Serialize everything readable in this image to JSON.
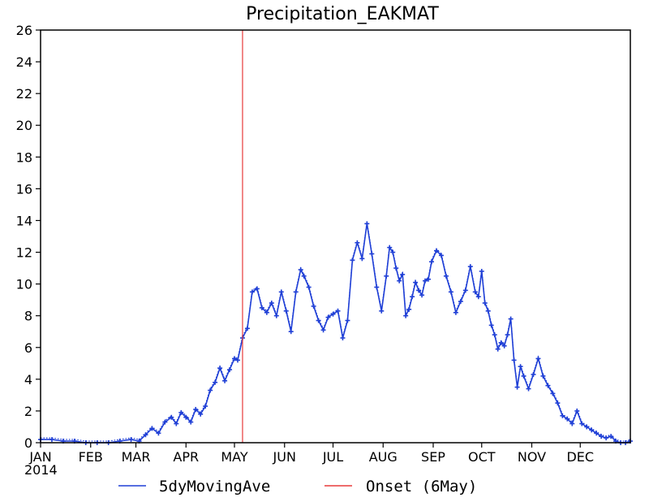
{
  "chart_data": {
    "type": "line",
    "title": "Precipitation_EAKMAT",
    "xlabel": "",
    "ylabel": "",
    "year_label": "2014",
    "x_tick_labels": [
      "JAN",
      "FEB",
      "MAR",
      "APR",
      "MAY",
      "JUN",
      "JUL",
      "AUG",
      "SEP",
      "OCT",
      "NOV",
      "DEC"
    ],
    "x_tick_days": [
      1,
      32,
      60,
      91,
      121,
      152,
      182,
      213,
      244,
      274,
      305,
      335
    ],
    "xlim": [
      1,
      366
    ],
    "ylim": [
      0,
      26
    ],
    "y_ticks": [
      0,
      2,
      4,
      6,
      8,
      10,
      12,
      14,
      16,
      18,
      20,
      22,
      24,
      26
    ],
    "grid": false,
    "legend_position": "bottom",
    "colors": {
      "series": "#1f3fd6",
      "onset": "#e83a3a",
      "axis": "#000000"
    },
    "series": [
      {
        "name": "5dyMovingAve",
        "x": [
          1,
          8,
          15,
          22,
          29,
          36,
          43,
          50,
          57,
          62,
          66,
          70,
          74,
          78,
          82,
          85,
          88,
          91,
          94,
          97,
          100,
          103,
          106,
          109,
          112,
          115,
          118,
          121,
          123,
          126,
          129,
          132,
          135,
          138,
          141,
          144,
          147,
          150,
          153,
          156,
          159,
          162,
          164,
          167,
          170,
          173,
          176,
          179,
          182,
          185,
          188,
          191,
          194,
          197,
          200,
          203,
          206,
          209,
          212,
          215,
          217,
          219,
          221,
          223,
          225,
          227,
          229,
          231,
          233,
          235,
          237,
          239,
          241,
          243,
          246,
          249,
          252,
          255,
          258,
          261,
          264,
          267,
          270,
          272,
          274,
          276,
          278,
          280,
          282,
          284,
          286,
          288,
          290,
          292,
          294,
          296,
          298,
          300,
          303,
          306,
          309,
          312,
          315,
          318,
          321,
          324,
          327,
          330,
          333,
          336,
          339,
          342,
          345,
          348,
          351,
          354,
          357,
          360,
          363,
          366
        ],
        "values": [
          0.2,
          0.2,
          0.1,
          0.1,
          0.0,
          0.0,
          0.0,
          0.1,
          0.2,
          0.1,
          0.5,
          0.9,
          0.6,
          1.3,
          1.6,
          1.2,
          1.9,
          1.6,
          1.3,
          2.1,
          1.8,
          2.3,
          3.3,
          3.8,
          4.7,
          3.9,
          4.6,
          5.3,
          5.2,
          6.6,
          7.2,
          9.5,
          9.7,
          8.5,
          8.2,
          8.8,
          8.0,
          9.5,
          8.3,
          7.0,
          9.5,
          10.9,
          10.5,
          9.8,
          8.6,
          7.7,
          7.1,
          7.9,
          8.1,
          8.3,
          6.6,
          7.7,
          11.5,
          12.6,
          11.6,
          13.8,
          11.9,
          9.8,
          8.3,
          10.5,
          12.3,
          12.0,
          11.0,
          10.2,
          10.6,
          8.0,
          8.4,
          9.2,
          10.1,
          9.6,
          9.3,
          10.2,
          10.3,
          11.4,
          12.1,
          11.8,
          10.5,
          9.5,
          8.2,
          8.9,
          9.6,
          11.1,
          9.5,
          9.2,
          10.8,
          8.8,
          8.3,
          7.4,
          6.8,
          5.9,
          6.3,
          6.1,
          6.8,
          7.8,
          5.2,
          3.5,
          4.8,
          4.2,
          3.4,
          4.3,
          5.3,
          4.2,
          3.6,
          3.1,
          2.5,
          1.7,
          1.5,
          1.2,
          2.0,
          1.2,
          1.0,
          0.8,
          0.6,
          0.4,
          0.3,
          0.4,
          0.1,
          0.0,
          0.0,
          0.1
        ]
      }
    ],
    "onset": {
      "name": "Onset (6May)",
      "day": 126
    }
  }
}
